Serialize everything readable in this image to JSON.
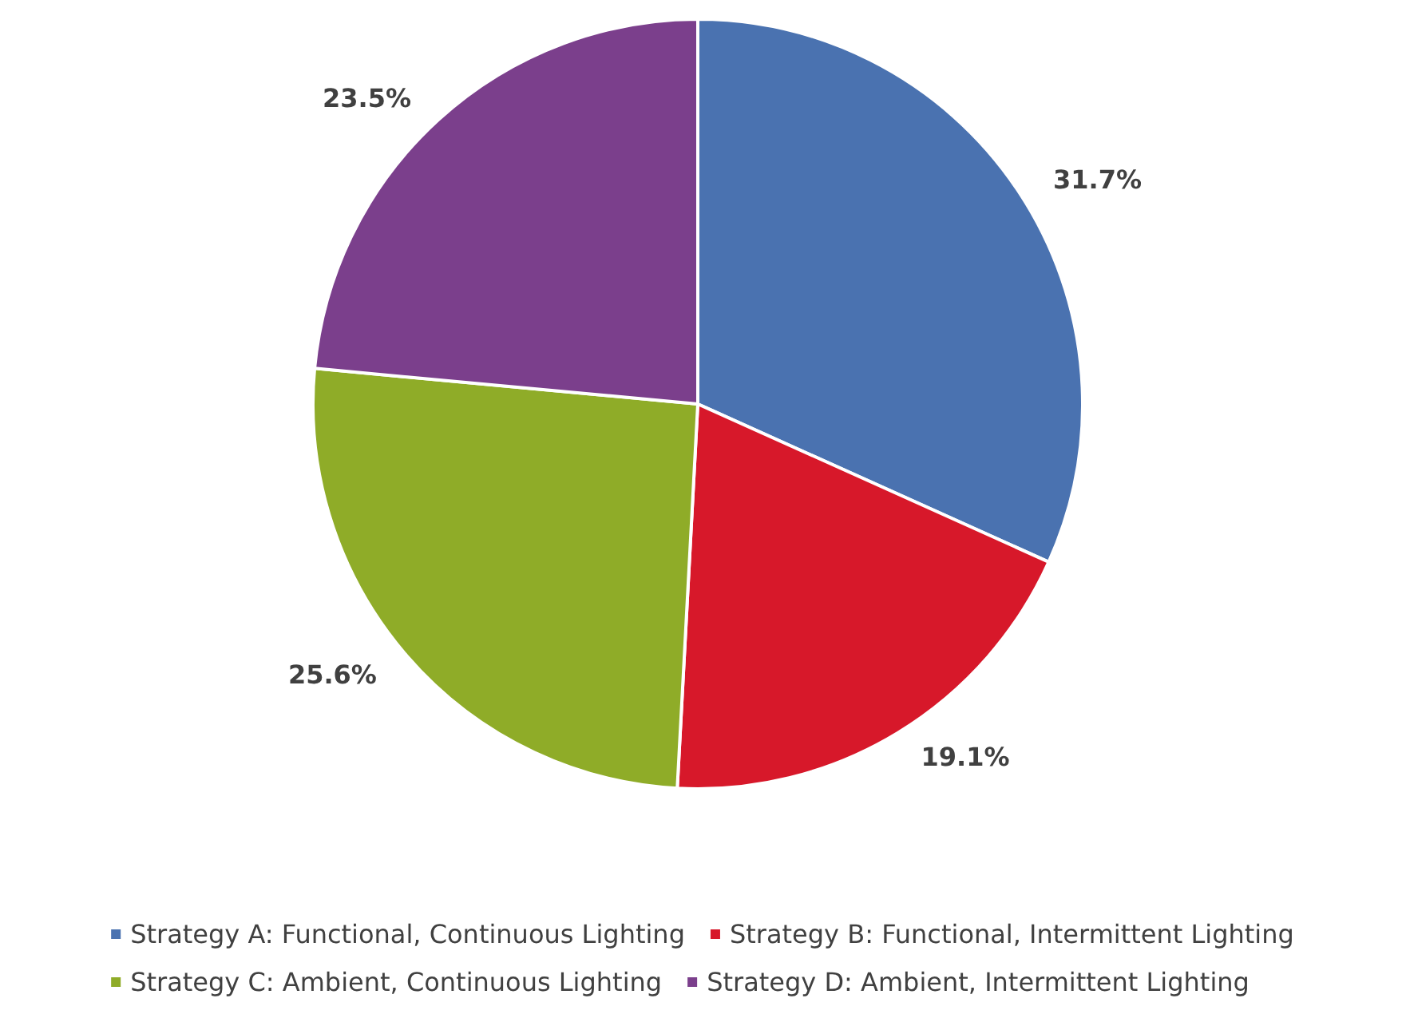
{
  "chart_data": {
    "type": "pie",
    "categories": [
      "Strategy A: Functional, Continuous Lighting",
      "Strategy B: Functional, Intermittent Lighting",
      "Strategy C: Ambient, Continuous Lighting",
      "Strategy D: Ambient, Intermittent Lighting"
    ],
    "values": [
      31.7,
      19.1,
      25.6,
      23.5
    ],
    "colors": [
      "#4a72b0",
      "#d7182a",
      "#8fac28",
      "#7b3f8c"
    ],
    "value_labels": [
      "31.7%",
      "19.1%",
      "25.6%",
      "23.5%"
    ],
    "legend": "bottom"
  }
}
